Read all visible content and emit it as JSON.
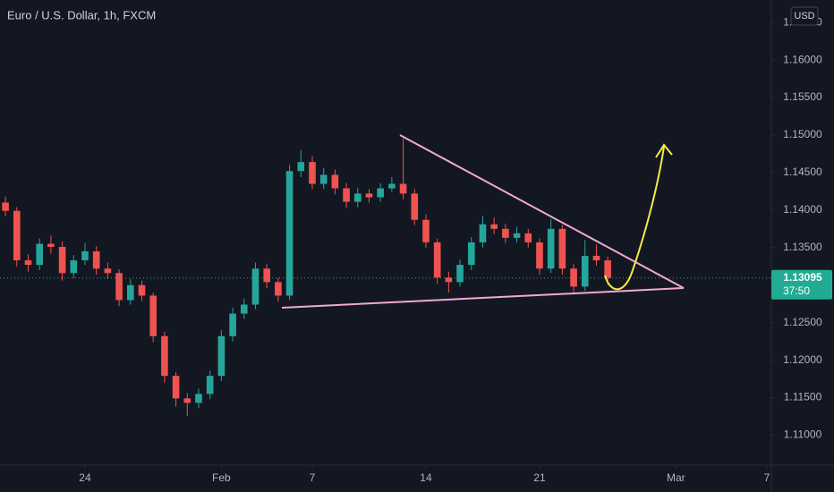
{
  "chart_data": {
    "type": "candlestick",
    "title": "Euro / U.S. Dollar, 1h, FXCM",
    "currency_button": "USD",
    "up_color": "#26a69a",
    "down_color": "#ef5350",
    "last_price": 1.13095,
    "last_price_color": "#22ab94",
    "countdown": "37:50",
    "xlim": [
      -3.74,
      30.12
    ],
    "xticks": [
      {
        "value": 0,
        "label": "24"
      },
      {
        "value": 6,
        "label": "Feb"
      },
      {
        "value": 10,
        "label": "7"
      },
      {
        "value": 15,
        "label": "14"
      },
      {
        "value": 20,
        "label": "21"
      },
      {
        "value": 26,
        "label": "Mar"
      },
      {
        "value": 30,
        "label": "7"
      }
    ],
    "ylim": [
      1.106,
      1.168
    ],
    "yticks": [
      {
        "value": 1.11,
        "label": "1.11000"
      },
      {
        "value": 1.115,
        "label": "1.11500"
      },
      {
        "value": 1.12,
        "label": "1.12000"
      },
      {
        "value": 1.125,
        "label": "1.12500"
      },
      {
        "value": 1.135,
        "label": "1.13500"
      },
      {
        "value": 1.14,
        "label": "1.14000"
      },
      {
        "value": 1.145,
        "label": "1.14500"
      },
      {
        "value": 1.15,
        "label": "1.15000"
      },
      {
        "value": 1.155,
        "label": "1.15500"
      },
      {
        "value": 1.16,
        "label": "1.16000"
      },
      {
        "value": 1.165,
        "label": "1.16500"
      }
    ],
    "x": [
      -3.5,
      -3,
      -2.5,
      -2,
      -1.5,
      -1,
      -0.5,
      0,
      0.5,
      1,
      1.5,
      2,
      2.5,
      3,
      3.5,
      4,
      4.5,
      5,
      5.5,
      6,
      6.5,
      7,
      7.5,
      8,
      8.5,
      9,
      9.5,
      10,
      10.5,
      11,
      11.5,
      12,
      12.5,
      13,
      13.5,
      14,
      14.5,
      15,
      15.5,
      16,
      16.5,
      17,
      17.5,
      18,
      18.5,
      19,
      19.5,
      20,
      20.5,
      21,
      21.5,
      22,
      22.5,
      23
    ],
    "open": [
      1.141,
      1.1399,
      1.1333,
      1.1327,
      1.1355,
      1.1351,
      1.1316,
      1.1333,
      1.1345,
      1.1322,
      1.1316,
      1.128,
      1.13,
      1.1286,
      1.1232,
      1.1179,
      1.1149,
      1.1143,
      1.1155,
      1.1179,
      1.1232,
      1.1262,
      1.1274,
      1.1322,
      1.1304,
      1.1286,
      1.1452,
      1.1464,
      1.1435,
      1.1447,
      1.1429,
      1.1411,
      1.1422,
      1.1417,
      1.1429,
      1.1435,
      1.1422,
      1.1387,
      1.1357,
      1.131,
      1.1304,
      1.1327,
      1.1357,
      1.1381,
      1.1375,
      1.1363,
      1.1369,
      1.1357,
      1.1322,
      1.1375,
      1.1322,
      1.1298,
      1.1339,
      1.1333
    ],
    "high": [
      1.1418,
      1.1404,
      1.1341,
      1.1362,
      1.1366,
      1.1358,
      1.134,
      1.1356,
      1.1352,
      1.133,
      1.1321,
      1.1308,
      1.1306,
      1.129,
      1.1238,
      1.1184,
      1.1156,
      1.1162,
      1.1186,
      1.124,
      1.127,
      1.1282,
      1.133,
      1.1328,
      1.131,
      1.146,
      1.148,
      1.1472,
      1.1456,
      1.1454,
      1.1436,
      1.143,
      1.1428,
      1.1436,
      1.1444,
      1.1495,
      1.1428,
      1.1394,
      1.1362,
      1.1318,
      1.1334,
      1.1364,
      1.1392,
      1.139,
      1.1382,
      1.1378,
      1.1375,
      1.1362,
      1.1388,
      1.138,
      1.1328,
      1.136,
      1.1354,
      1.1338
    ],
    "low": [
      1.1392,
      1.1325,
      1.1318,
      1.132,
      1.1342,
      1.1306,
      1.1309,
      1.1327,
      1.1314,
      1.1308,
      1.1272,
      1.1274,
      1.1279,
      1.1224,
      1.117,
      1.1138,
      1.1126,
      1.1136,
      1.1148,
      1.1172,
      1.1225,
      1.1255,
      1.1268,
      1.1296,
      1.1278,
      1.128,
      1.1444,
      1.1428,
      1.1428,
      1.1421,
      1.1403,
      1.1404,
      1.141,
      1.1411,
      1.1424,
      1.1414,
      1.138,
      1.135,
      1.1302,
      1.129,
      1.1298,
      1.132,
      1.135,
      1.1368,
      1.1356,
      1.1357,
      1.135,
      1.1314,
      1.1316,
      1.1314,
      1.129,
      1.1292,
      1.1326,
      1.13
    ],
    "close": [
      1.1399,
      1.1333,
      1.1327,
      1.1355,
      1.1351,
      1.1316,
      1.1333,
      1.1345,
      1.1322,
      1.1316,
      1.128,
      1.13,
      1.1286,
      1.1232,
      1.1179,
      1.1149,
      1.1143,
      1.1155,
      1.1179,
      1.1232,
      1.1262,
      1.1274,
      1.1322,
      1.1304,
      1.1286,
      1.1452,
      1.1464,
      1.1435,
      1.1447,
      1.1429,
      1.1411,
      1.1422,
      1.1417,
      1.1429,
      1.1435,
      1.1422,
      1.1387,
      1.1357,
      1.131,
      1.1304,
      1.1327,
      1.1357,
      1.1381,
      1.1375,
      1.1363,
      1.1369,
      1.1357,
      1.1322,
      1.1375,
      1.1322,
      1.1298,
      1.1339,
      1.1333,
      1.13095
    ]
  }
}
